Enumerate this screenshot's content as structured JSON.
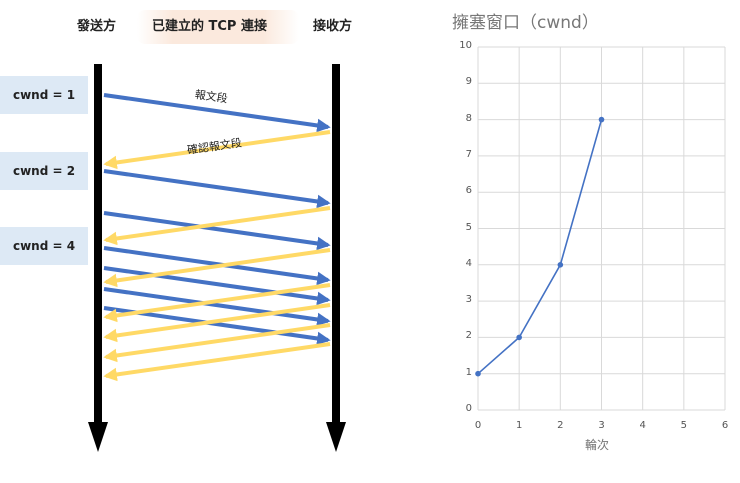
{
  "diagram": {
    "sender_label": "發送方",
    "connection_label": "已建立的 TCP 連接",
    "receiver_label": "接收方",
    "segment_label": "報文段",
    "ack_label": "確認報文段",
    "cwnd_labels": [
      "cwnd = 1",
      "cwnd = 2",
      "cwnd = 4"
    ],
    "colors": {
      "segment": "#4472c4",
      "ack": "#ffd966",
      "timeline": "#000000",
      "cwnd_box": "#dde9f5",
      "connection_bg": "#fbe9dd"
    }
  },
  "chart_data": {
    "type": "line",
    "title": "擁塞窗口（cwnd）",
    "xlabel": "輪次",
    "ylabel": "",
    "x": [
      0,
      1,
      2,
      3
    ],
    "y": [
      1,
      2,
      4,
      8
    ],
    "xlim": [
      0,
      6
    ],
    "ylim": [
      0,
      10
    ],
    "xticks": [
      "0",
      "1",
      "2",
      "3",
      "4",
      "5",
      "6"
    ],
    "yticks": [
      "0",
      "1",
      "2",
      "3",
      "4",
      "5",
      "6",
      "7",
      "8",
      "9",
      "10"
    ],
    "grid": true,
    "color": "#4472c4"
  }
}
